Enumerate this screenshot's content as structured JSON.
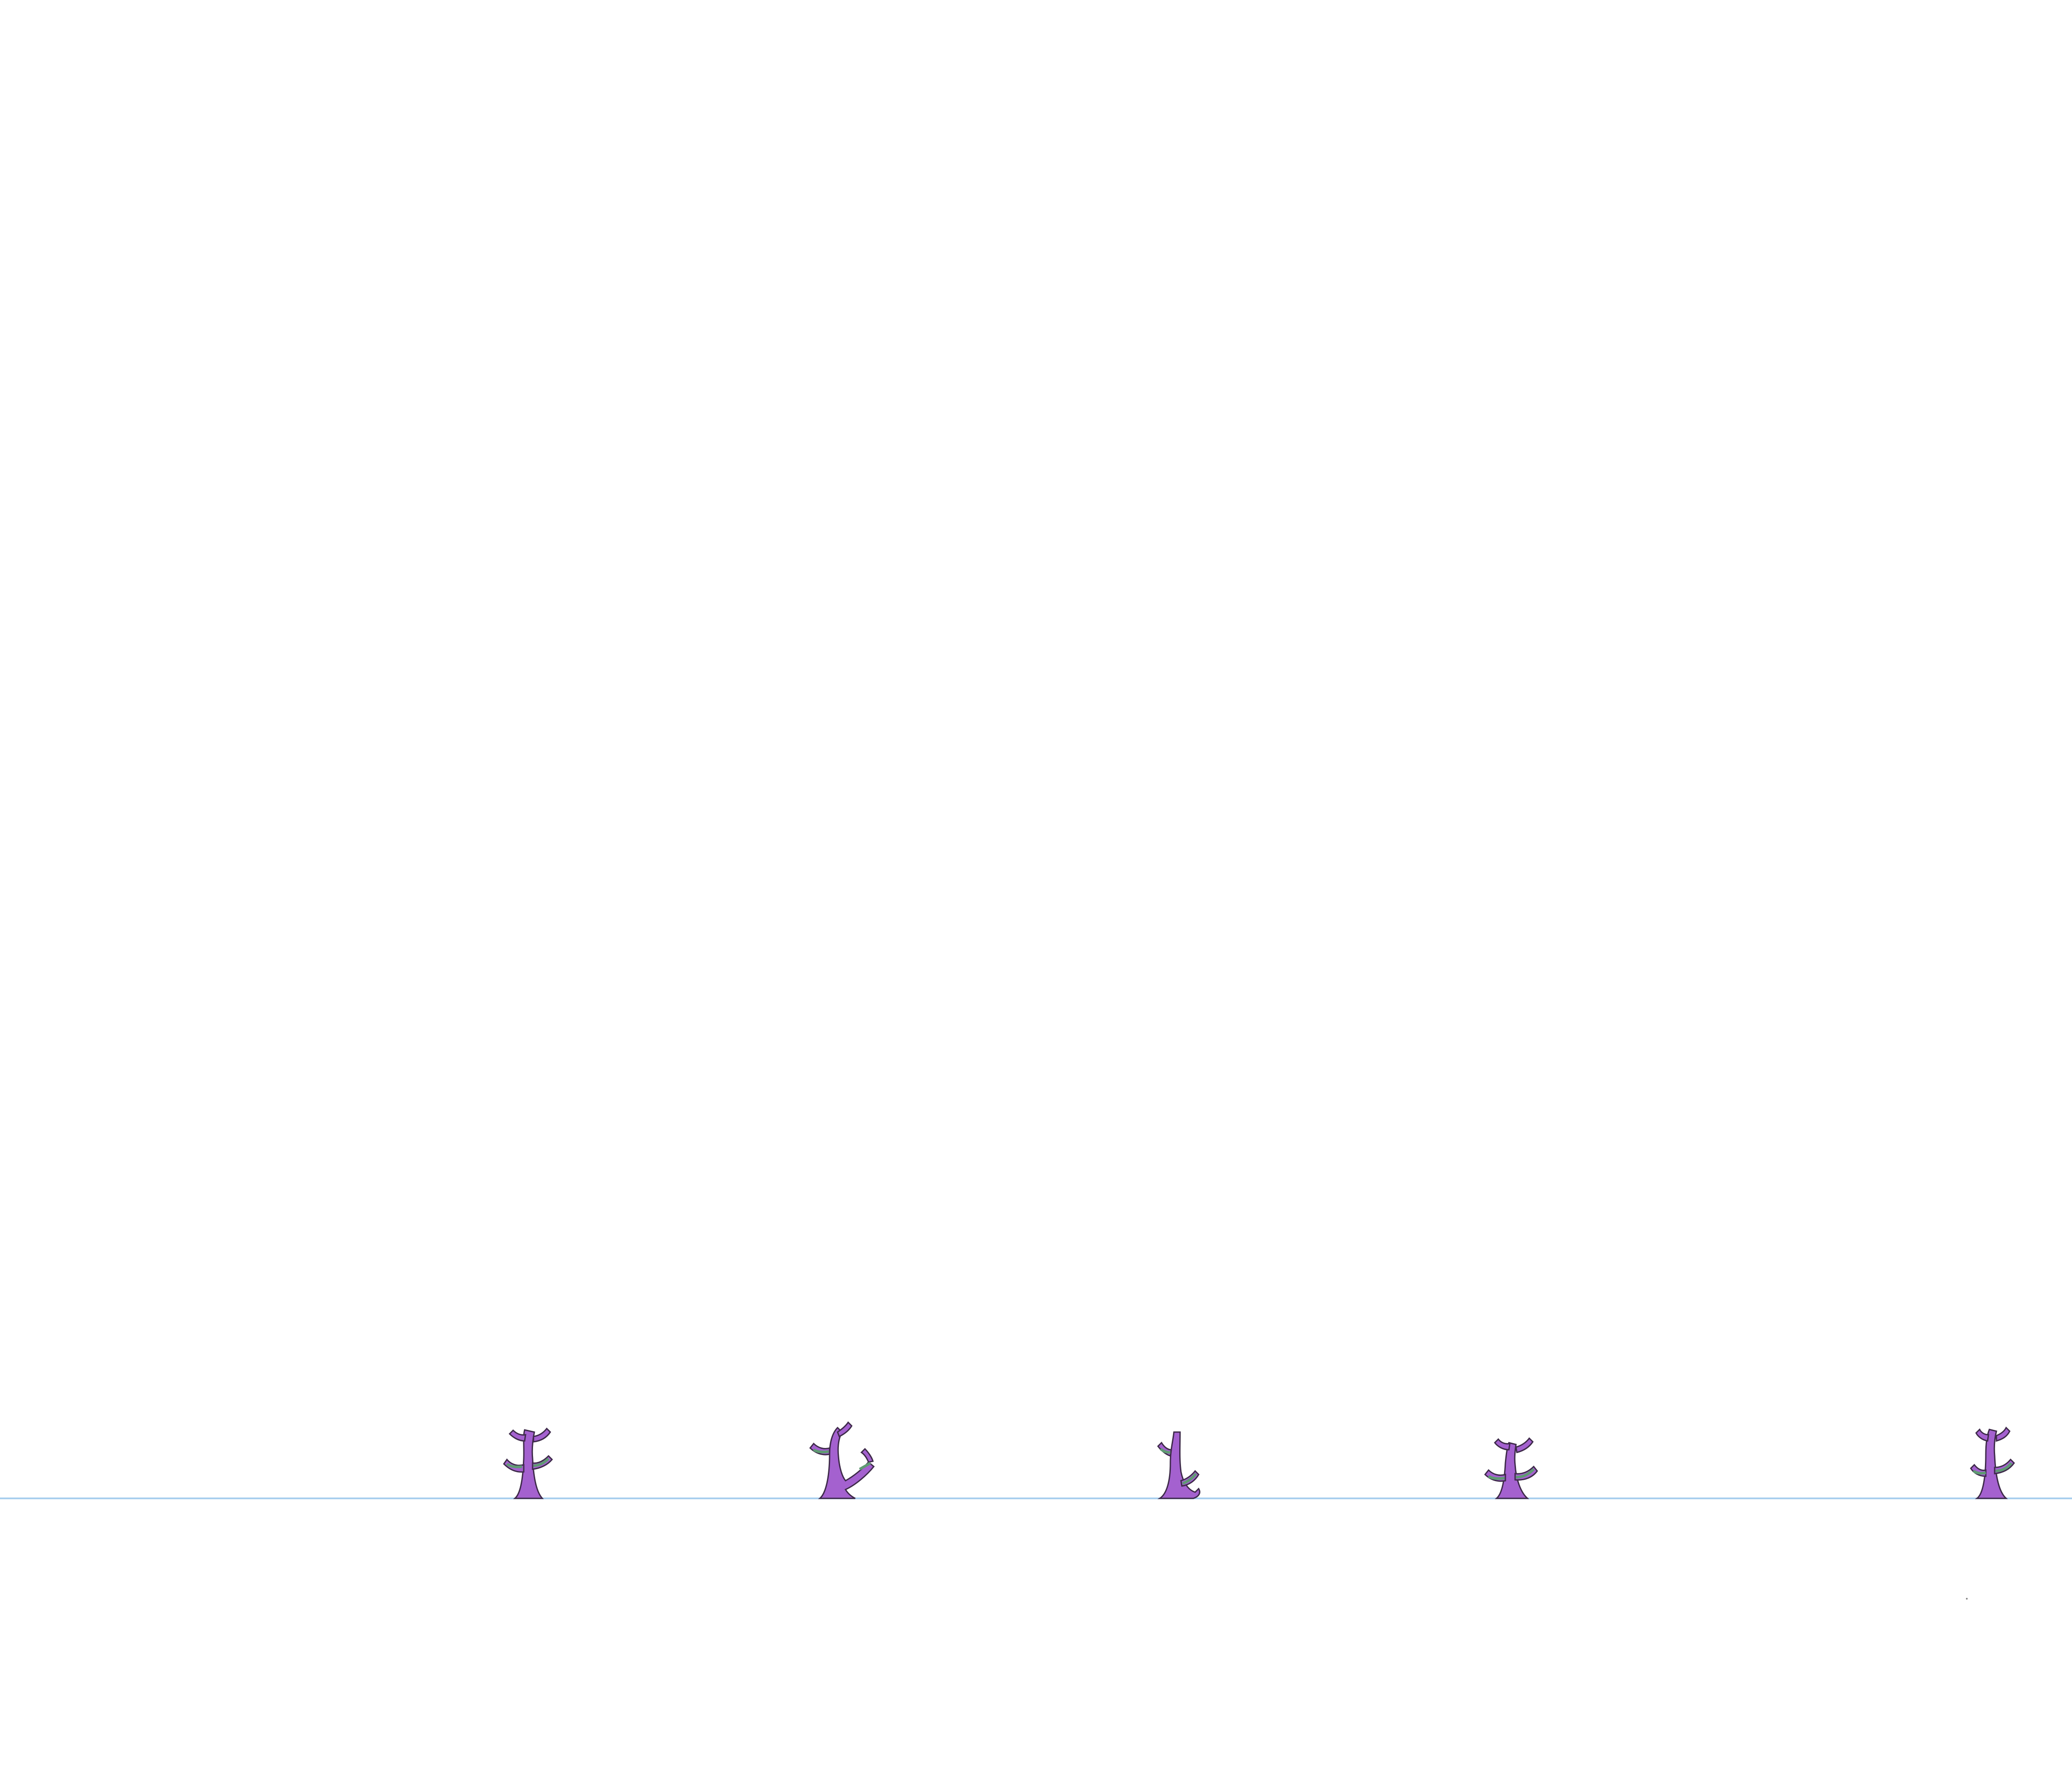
{
  "scene": {
    "background_color": "#ffffff",
    "ground_line_color": "#a9cfee",
    "plant_fill_color": "#a461cf",
    "plant_outline_color": "#3e2a4a",
    "leaf_fill_color": "#5f9a73",
    "plant_count": 5
  }
}
